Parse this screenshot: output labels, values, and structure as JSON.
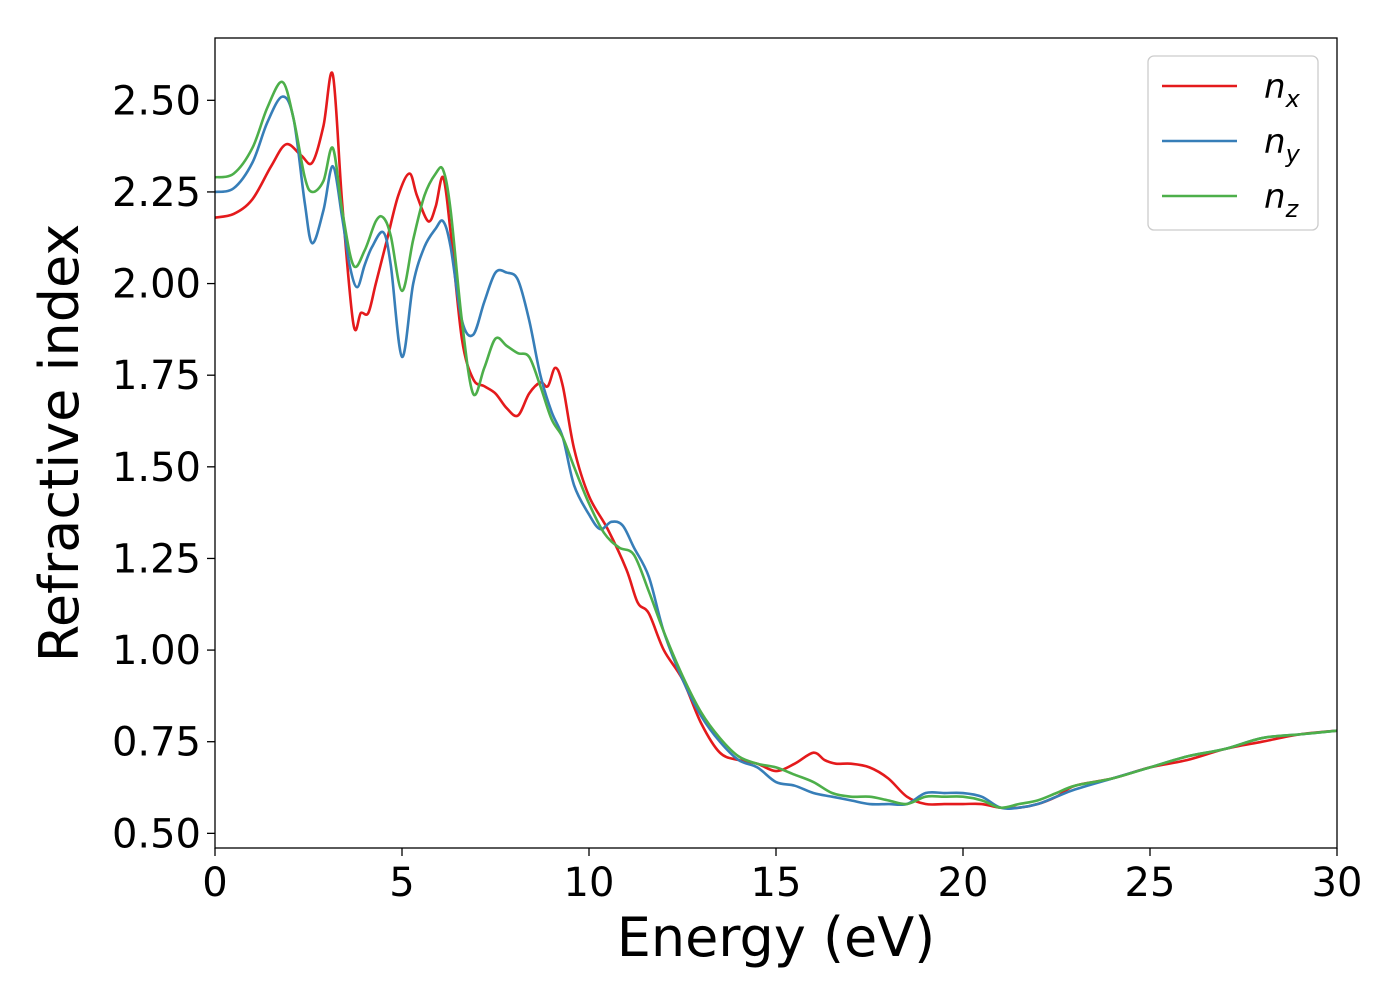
{
  "chart_data": {
    "type": "line",
    "xlabel": "Energy (eV)",
    "ylabel": "Refractive index",
    "xlim": [
      0,
      30
    ],
    "ylim": [
      0.46,
      2.67
    ],
    "xticks": [
      0,
      5,
      10,
      15,
      20,
      25,
      30
    ],
    "xtick_labels": [
      "0",
      "5",
      "10",
      "15",
      "20",
      "25",
      "30"
    ],
    "yticks": [
      0.5,
      0.75,
      1.0,
      1.25,
      1.5,
      1.75,
      2.0,
      2.25,
      2.5
    ],
    "ytick_labels": [
      "0.50",
      "0.75",
      "1.00",
      "1.25",
      "1.50",
      "1.75",
      "2.00",
      "2.25",
      "2.50"
    ],
    "grid": false,
    "legend_position": "top-right",
    "series": [
      {
        "name": "n",
        "subscript": "x",
        "color": "#e41a1c",
        "x": [
          0,
          0.5,
          1.0,
          1.5,
          1.9,
          2.3,
          2.6,
          2.9,
          3.15,
          3.4,
          3.7,
          3.9,
          4.1,
          4.3,
          4.6,
          4.9,
          5.2,
          5.4,
          5.7,
          5.9,
          6.1,
          6.3,
          6.6,
          6.9,
          7.2,
          7.5,
          7.8,
          8.1,
          8.4,
          8.7,
          8.9,
          9.1,
          9.3,
          9.6,
          10.0,
          10.5,
          11.0,
          11.3,
          11.6,
          12.0,
          12.5,
          13.0,
          13.5,
          14.0,
          14.5,
          15.0,
          15.5,
          16.0,
          16.3,
          16.6,
          17.0,
          17.5,
          18.0,
          18.5,
          19.0,
          19.5,
          20.0,
          20.5,
          21.0,
          21.5,
          22.0,
          22.5,
          23.0,
          24.0,
          25.0,
          26.0,
          27.0,
          28.0,
          29.0,
          30.0
        ],
        "y": [
          2.18,
          2.19,
          2.23,
          2.32,
          2.38,
          2.35,
          2.33,
          2.43,
          2.57,
          2.22,
          1.89,
          1.92,
          1.92,
          2.0,
          2.12,
          2.24,
          2.3,
          2.24,
          2.17,
          2.21,
          2.29,
          2.14,
          1.85,
          1.74,
          1.72,
          1.7,
          1.66,
          1.64,
          1.7,
          1.73,
          1.72,
          1.77,
          1.72,
          1.55,
          1.42,
          1.33,
          1.22,
          1.13,
          1.1,
          1.0,
          0.92,
          0.8,
          0.72,
          0.7,
          0.69,
          0.67,
          0.69,
          0.72,
          0.7,
          0.69,
          0.69,
          0.68,
          0.65,
          0.6,
          0.58,
          0.58,
          0.58,
          0.58,
          0.57,
          0.57,
          0.58,
          0.6,
          0.63,
          0.65,
          0.68,
          0.7,
          0.73,
          0.75,
          0.77,
          0.78
        ]
      },
      {
        "name": "n",
        "subscript": "y",
        "color": "#377eb8",
        "x": [
          0,
          0.5,
          1.0,
          1.4,
          1.8,
          2.1,
          2.4,
          2.6,
          2.9,
          3.15,
          3.4,
          3.6,
          3.8,
          4.0,
          4.2,
          4.5,
          4.7,
          5.0,
          5.3,
          5.6,
          5.9,
          6.1,
          6.3,
          6.6,
          6.9,
          7.2,
          7.5,
          7.8,
          8.1,
          8.4,
          8.7,
          9.0,
          9.3,
          9.6,
          10.0,
          10.3,
          10.6,
          10.9,
          11.2,
          11.6,
          12.0,
          12.5,
          13.0,
          13.5,
          14.0,
          14.5,
          15.0,
          15.5,
          16.0,
          16.5,
          17.0,
          17.5,
          18.0,
          18.5,
          19.0,
          19.5,
          20.0,
          20.5,
          21.0,
          21.5,
          22.0,
          22.5,
          23.0,
          24.0,
          25.0,
          26.0,
          27.0,
          28.0,
          29.0,
          30.0
        ],
        "y": [
          2.25,
          2.26,
          2.33,
          2.44,
          2.51,
          2.45,
          2.22,
          2.11,
          2.2,
          2.32,
          2.18,
          2.05,
          1.99,
          2.05,
          2.1,
          2.14,
          2.05,
          1.8,
          2.0,
          2.1,
          2.15,
          2.17,
          2.1,
          1.9,
          1.86,
          1.95,
          2.03,
          2.03,
          2.01,
          1.9,
          1.75,
          1.65,
          1.58,
          1.45,
          1.37,
          1.33,
          1.35,
          1.34,
          1.28,
          1.2,
          1.05,
          0.92,
          0.82,
          0.75,
          0.7,
          0.68,
          0.64,
          0.63,
          0.61,
          0.6,
          0.59,
          0.58,
          0.58,
          0.58,
          0.61,
          0.61,
          0.61,
          0.6,
          0.57,
          0.57,
          0.58,
          0.6,
          0.62,
          0.65,
          0.68,
          0.71,
          0.73,
          0.76,
          0.77,
          0.78
        ]
      },
      {
        "name": "n",
        "subscript": "z",
        "color": "#4daf4a",
        "x": [
          0,
          0.5,
          1.0,
          1.4,
          1.8,
          2.1,
          2.4,
          2.6,
          2.9,
          3.15,
          3.4,
          3.7,
          4.0,
          4.3,
          4.5,
          4.7,
          5.0,
          5.3,
          5.6,
          5.9,
          6.1,
          6.3,
          6.6,
          6.9,
          7.2,
          7.5,
          7.8,
          8.1,
          8.4,
          8.7,
          9.0,
          9.3,
          9.6,
          10.0,
          10.4,
          10.8,
          11.2,
          11.6,
          12.0,
          12.5,
          13.0,
          13.5,
          14.0,
          14.5,
          15.0,
          15.5,
          16.0,
          16.5,
          17.0,
          17.5,
          18.0,
          18.5,
          19.0,
          19.5,
          20.0,
          20.5,
          21.0,
          21.5,
          22.0,
          22.5,
          23.0,
          24.0,
          25.0,
          26.0,
          27.0,
          28.0,
          29.0,
          30.0
        ],
        "y": [
          2.29,
          2.3,
          2.37,
          2.48,
          2.55,
          2.45,
          2.29,
          2.25,
          2.28,
          2.37,
          2.2,
          2.05,
          2.09,
          2.17,
          2.18,
          2.13,
          1.98,
          2.12,
          2.24,
          2.3,
          2.31,
          2.2,
          1.9,
          1.7,
          1.77,
          1.85,
          1.83,
          1.81,
          1.8,
          1.72,
          1.63,
          1.58,
          1.5,
          1.4,
          1.32,
          1.28,
          1.26,
          1.16,
          1.05,
          0.93,
          0.83,
          0.76,
          0.71,
          0.69,
          0.68,
          0.66,
          0.64,
          0.61,
          0.6,
          0.6,
          0.59,
          0.58,
          0.6,
          0.6,
          0.6,
          0.59,
          0.57,
          0.58,
          0.59,
          0.61,
          0.63,
          0.65,
          0.68,
          0.71,
          0.73,
          0.76,
          0.77,
          0.78
        ]
      }
    ]
  }
}
